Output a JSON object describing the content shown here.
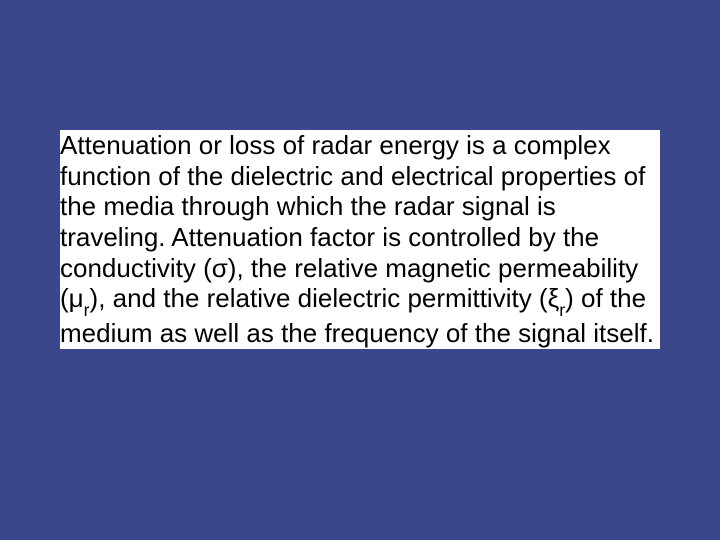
{
  "slide": {
    "background_color": "#3a488b",
    "text_box_background": "#ffffff",
    "text_color": "#000000",
    "font_family": "Arial",
    "font_size_pt": 20,
    "line1": "Attenuation or loss of radar energy is a complex function of the dielectric and electrical properties of the media through which the radar signal is traveling. Attenuation factor is controlled by the conductivity (",
    "sigma": "σ",
    "line2": "), the relative magnetic permeability (",
    "mu": "μ",
    "mu_sub": "r",
    "line3": "), and the relative dielectric permittivity (",
    "xi": "ξ",
    "xi_sub": "r",
    "line4": ") of the medium as well as the frequency of the signal itself."
  }
}
